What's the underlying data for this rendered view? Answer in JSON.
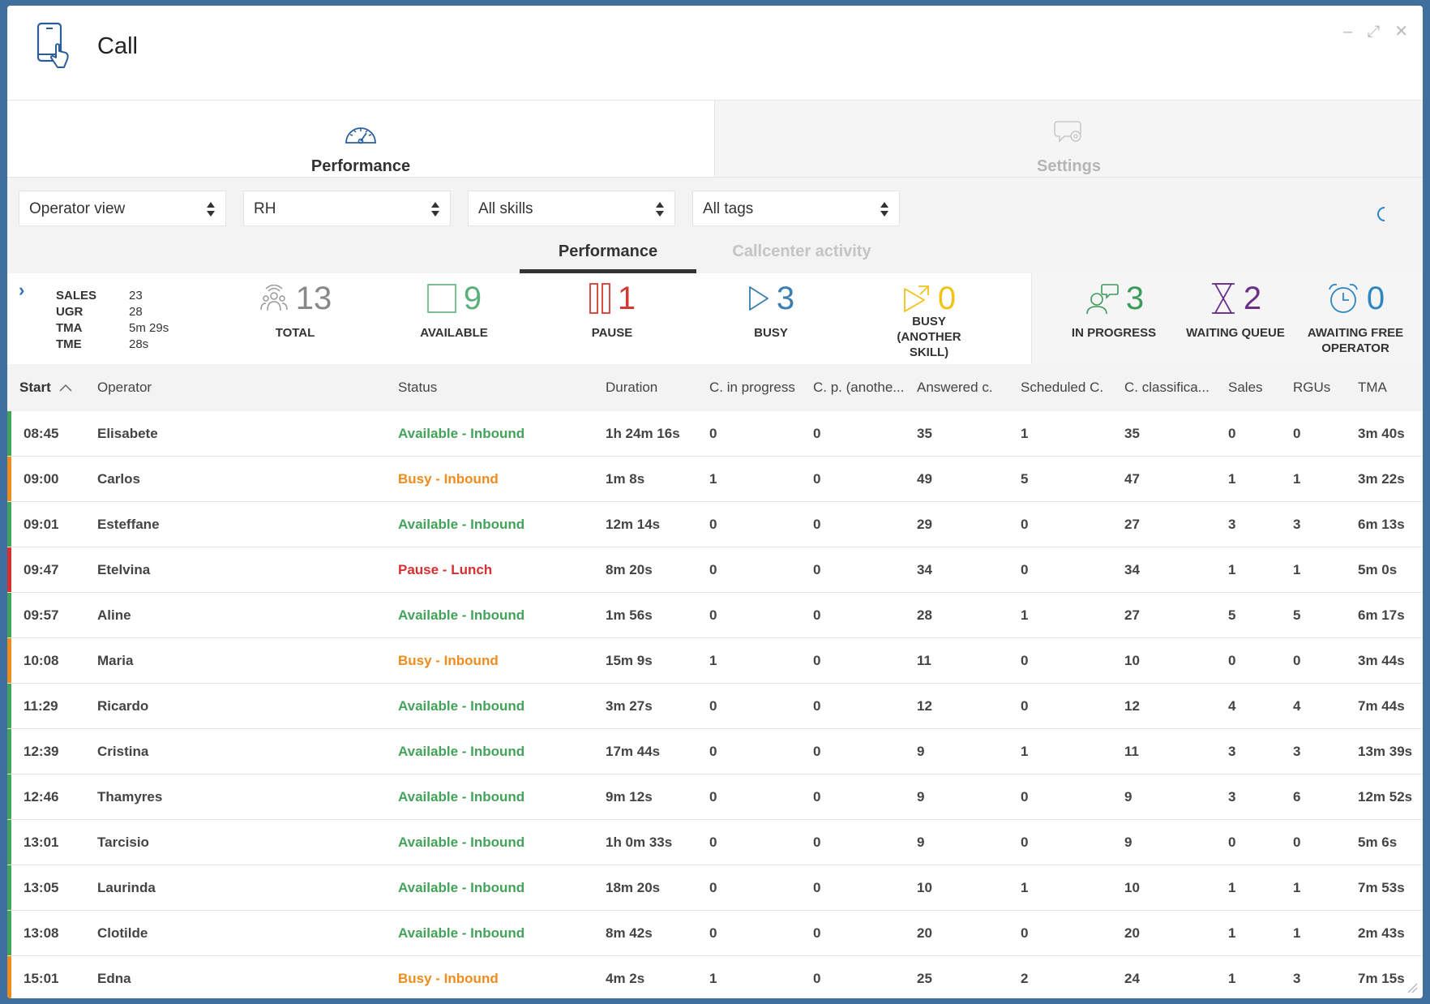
{
  "window": {
    "title": "Call",
    "controls": [
      "–",
      "⤢",
      "✕"
    ]
  },
  "main_tabs": [
    {
      "label": "Performance",
      "icon": "speedometer-icon",
      "active": true
    },
    {
      "label": "Settings",
      "icon": "chat-gear-icon",
      "active": false
    }
  ],
  "filters": {
    "view": "Operator view",
    "group": "RH",
    "skills": "All skills",
    "tags": "All tags"
  },
  "sub_tabs": [
    {
      "label": "Performance",
      "active": true
    },
    {
      "label": "Callcenter activity",
      "active": false
    }
  ],
  "summary": [
    {
      "key": "SALES",
      "value": "23"
    },
    {
      "key": "UGR",
      "value": "28"
    },
    {
      "key": "TMA",
      "value": "5m 29s"
    },
    {
      "key": "TME",
      "value": "28s"
    }
  ],
  "stats": [
    {
      "id": "total",
      "value": "13",
      "label": "TOTAL",
      "color": "#888888",
      "icon": "group-icon"
    },
    {
      "id": "available",
      "value": "9",
      "label": "AVAILABLE",
      "color": "#5bb07a",
      "icon": "square-icon"
    },
    {
      "id": "pause",
      "value": "1",
      "label": "PAUSE",
      "color": "#d23b34",
      "icon": "pause-icon"
    },
    {
      "id": "busy",
      "value": "3",
      "label": "BUSY",
      "color": "#3a7fb0",
      "icon": "play-icon"
    },
    {
      "id": "busy_other",
      "value": "0",
      "label": "BUSY (ANOTHER SKILL)",
      "color": "#f2c21a",
      "icon": "play-arrow-icon"
    },
    {
      "id": "in_progress",
      "value": "3",
      "label": "IN PROGRESS",
      "color": "#3d9a5a",
      "icon": "agents-talking-icon"
    },
    {
      "id": "waiting",
      "value": "2",
      "label": "WAITING QUEUE",
      "color": "#6b2f86",
      "icon": "hourglass-icon"
    },
    {
      "id": "awaiting",
      "value": "0",
      "label": "AWAITING FREE OPERATOR",
      "color": "#2e86c1",
      "icon": "alarm-clock-icon"
    }
  ],
  "table": {
    "columns": [
      "Start",
      "Operator",
      "Status",
      "Duration",
      "C. in progress",
      "C. p. (anothe...",
      "Answered c.",
      "Scheduled C.",
      "C. classifica...",
      "Sales",
      "RGUs",
      "TMA"
    ],
    "rows": [
      {
        "start": "08:45",
        "operator": "Elisabete",
        "status": "Available - Inbound",
        "state": "available",
        "duration": "1h 24m 16s",
        "c_progress": "0",
        "c_other": "0",
        "answered": "35",
        "scheduled": "1",
        "classified": "35",
        "sales": "0",
        "rgus": "0",
        "tma": "3m 40s"
      },
      {
        "start": "09:00",
        "operator": "Carlos",
        "status": "Busy - Inbound",
        "state": "busy",
        "duration": "1m 8s",
        "c_progress": "1",
        "c_other": "0",
        "answered": "49",
        "scheduled": "5",
        "classified": "47",
        "sales": "1",
        "rgus": "1",
        "tma": "3m 22s"
      },
      {
        "start": "09:01",
        "operator": "Esteffane",
        "status": "Available - Inbound",
        "state": "available",
        "duration": "12m 14s",
        "c_progress": "0",
        "c_other": "0",
        "answered": "29",
        "scheduled": "0",
        "classified": "27",
        "sales": "3",
        "rgus": "3",
        "tma": "6m 13s"
      },
      {
        "start": "09:47",
        "operator": "Etelvina",
        "status": "Pause - Lunch",
        "state": "pause",
        "duration": "8m 20s",
        "c_progress": "0",
        "c_other": "0",
        "answered": "34",
        "scheduled": "0",
        "classified": "34",
        "sales": "1",
        "rgus": "1",
        "tma": "5m 0s"
      },
      {
        "start": "09:57",
        "operator": "Aline",
        "status": "Available - Inbound",
        "state": "available",
        "duration": "1m 56s",
        "c_progress": "0",
        "c_other": "0",
        "answered": "28",
        "scheduled": "1",
        "classified": "27",
        "sales": "5",
        "rgus": "5",
        "tma": "6m 17s"
      },
      {
        "start": "10:08",
        "operator": "Maria",
        "status": "Busy - Inbound",
        "state": "busy",
        "duration": "15m 9s",
        "c_progress": "1",
        "c_other": "0",
        "answered": "11",
        "scheduled": "0",
        "classified": "10",
        "sales": "0",
        "rgus": "0",
        "tma": "3m 44s"
      },
      {
        "start": "11:29",
        "operator": "Ricardo",
        "status": "Available - Inbound",
        "state": "available",
        "duration": "3m 27s",
        "c_progress": "0",
        "c_other": "0",
        "answered": "12",
        "scheduled": "0",
        "classified": "12",
        "sales": "4",
        "rgus": "4",
        "tma": "7m 44s"
      },
      {
        "start": "12:39",
        "operator": "Cristina",
        "status": "Available - Inbound",
        "state": "available",
        "duration": "17m 44s",
        "c_progress": "0",
        "c_other": "0",
        "answered": "9",
        "scheduled": "1",
        "classified": "11",
        "sales": "3",
        "rgus": "3",
        "tma": "13m 39s"
      },
      {
        "start": "12:46",
        "operator": "Thamyres",
        "status": "Available - Inbound",
        "state": "available",
        "duration": "9m 12s",
        "c_progress": "0",
        "c_other": "0",
        "answered": "9",
        "scheduled": "0",
        "classified": "9",
        "sales": "3",
        "rgus": "6",
        "tma": "12m 52s"
      },
      {
        "start": "13:01",
        "operator": "Tarcisio",
        "status": "Available - Inbound",
        "state": "available",
        "duration": "1h 0m 33s",
        "c_progress": "0",
        "c_other": "0",
        "answered": "9",
        "scheduled": "0",
        "classified": "9",
        "sales": "0",
        "rgus": "0",
        "tma": "5m 6s"
      },
      {
        "start": "13:05",
        "operator": "Laurinda",
        "status": "Available - Inbound",
        "state": "available",
        "duration": "18m 20s",
        "c_progress": "0",
        "c_other": "0",
        "answered": "10",
        "scheduled": "1",
        "classified": "10",
        "sales": "1",
        "rgus": "1",
        "tma": "7m 53s"
      },
      {
        "start": "13:08",
        "operator": "Clotilde",
        "status": "Available - Inbound",
        "state": "available",
        "duration": "8m 42s",
        "c_progress": "0",
        "c_other": "0",
        "answered": "20",
        "scheduled": "0",
        "classified": "20",
        "sales": "1",
        "rgus": "1",
        "tma": "2m 43s"
      },
      {
        "start": "15:01",
        "operator": "Edna",
        "status": "Busy - Inbound",
        "state": "busy",
        "duration": "4m 2s",
        "c_progress": "1",
        "c_other": "0",
        "answered": "25",
        "scheduled": "2",
        "classified": "24",
        "sales": "1",
        "rgus": "3",
        "tma": "7m 15s"
      }
    ]
  },
  "state_colors": {
    "available": "#43a35a",
    "busy": "#f08c1c",
    "pause": "#d62f2f"
  }
}
